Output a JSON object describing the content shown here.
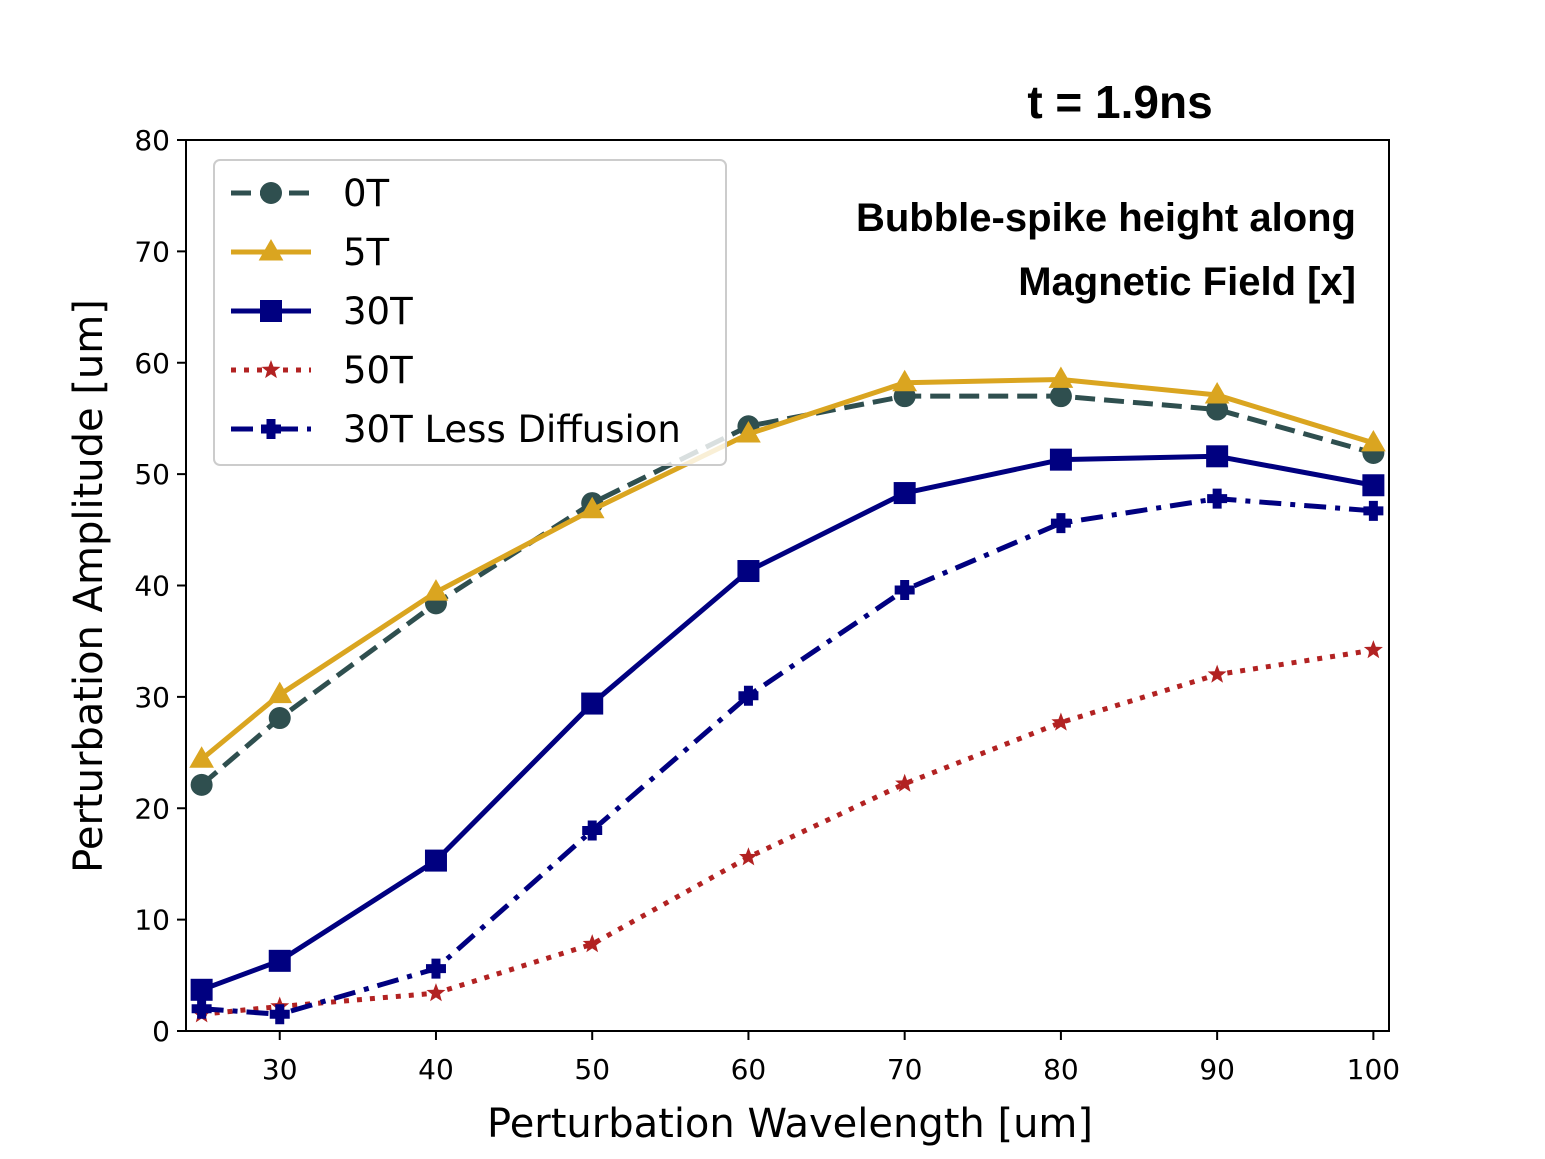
{
  "chart_data": {
    "type": "line",
    "title": "t = 1.9ns",
    "annotation": [
      "Bubble-spike height along",
      "Magnetic Field [x]"
    ],
    "xlabel": "Perturbation Wavelength [um]",
    "ylabel": "Perturbation Amplitude [um]",
    "xlim": [
      24,
      101
    ],
    "ylim": [
      0,
      80
    ],
    "xticks": [
      30,
      40,
      50,
      60,
      70,
      80,
      90,
      100
    ],
    "yticks": [
      0,
      10,
      20,
      30,
      40,
      50,
      60,
      70,
      80
    ],
    "grid": false,
    "legend_position": "top-left",
    "x": [
      25,
      30,
      40,
      50,
      60,
      70,
      80,
      90,
      100
    ],
    "series": [
      {
        "name": "0T",
        "color": "#2f4f4f",
        "linestyle": "dashed",
        "marker": "circle",
        "values": [
          22.1,
          28.1,
          38.4,
          47.4,
          54.3,
          57.0,
          57.0,
          55.8,
          51.9
        ]
      },
      {
        "name": "5T",
        "color": "#daa520",
        "linestyle": "solid",
        "marker": "triangle",
        "values": [
          24.4,
          30.2,
          39.4,
          46.8,
          53.6,
          58.2,
          58.5,
          57.1,
          52.8
        ]
      },
      {
        "name": "30T",
        "color": "#000080",
        "linestyle": "solid",
        "marker": "square",
        "values": [
          3.7,
          6.3,
          15.3,
          29.4,
          41.3,
          48.3,
          51.3,
          51.6,
          49.0
        ]
      },
      {
        "name": "50T",
        "color": "#b22222",
        "linestyle": "dotted",
        "marker": "star",
        "values": [
          1.5,
          2.2,
          3.4,
          7.8,
          15.6,
          22.2,
          27.7,
          32.0,
          34.2
        ]
      },
      {
        "name": "30T Less Diffusion",
        "color": "#000080",
        "linestyle": "dashdot",
        "marker": "plus",
        "values": [
          2.0,
          1.5,
          5.6,
          18.0,
          30.1,
          39.6,
          45.6,
          47.8,
          46.7
        ]
      }
    ]
  }
}
